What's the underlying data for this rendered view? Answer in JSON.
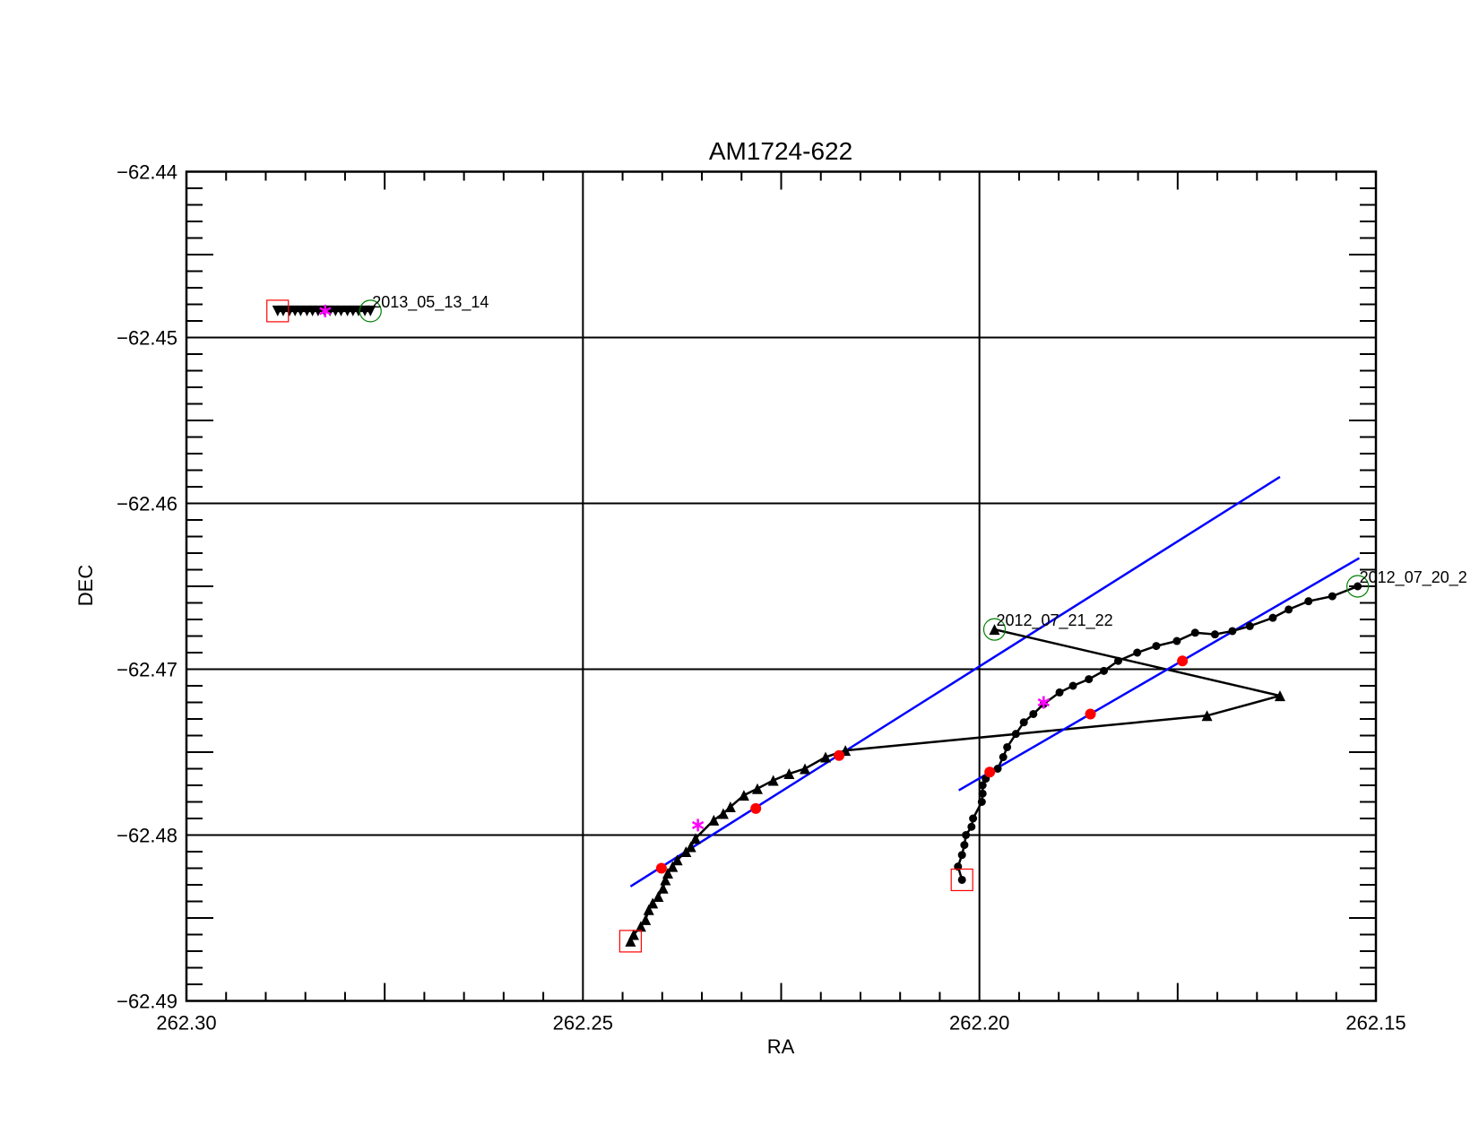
{
  "chart_data": {
    "type": "scatter",
    "title": "AM1724-622",
    "x_label": "RA",
    "y_label": "DEC",
    "xlim": [
      262.3,
      262.15
    ],
    "ylim": [
      -62.49,
      -62.44
    ],
    "xticks": [
      {
        "value": 262.3,
        "label": "262.30"
      },
      262.25,
      {
        "value": 262.2,
        "label": "262.20"
      },
      262.15
    ],
    "yticks": [
      {
        "value": -62.49,
        "label": "−62.49"
      },
      {
        "value": -62.48,
        "label": "−62.48"
      },
      {
        "value": -62.47,
        "label": "−62.47"
      },
      {
        "value": -62.46,
        "label": "−62.46"
      },
      {
        "value": -62.45,
        "label": "−62.45"
      },
      {
        "value": -62.44,
        "label": "−62.44"
      }
    ],
    "minor_divisions": 10,
    "grid": true,
    "start_color": "#ff0000",
    "end_color": "#008000",
    "highlight_color": "#ff00ff",
    "points_color": "#ff0000",
    "fit_color": "#0000ff",
    "series": [
      {
        "name": "2013_05_13_14",
        "marker": "triangle-down",
        "color": "#000000",
        "x": [
          262.2885,
          262.2878,
          262.287,
          262.2863,
          262.2856,
          262.2848,
          262.2841,
          262.2834,
          262.2826,
          262.2819,
          262.2812,
          262.2805,
          262.2797,
          262.279,
          262.2783,
          262.2775,
          262.2768
        ],
        "y": [
          -62.4484,
          -62.4484,
          -62.4484,
          -62.4484,
          -62.4484,
          -62.4484,
          -62.4484,
          -62.4484,
          -62.4484,
          -62.4484,
          -62.4484,
          -62.4484,
          -62.4484,
          -62.4484,
          -62.4484,
          -62.4484,
          -62.4484
        ],
        "highlight": {
          "x": 262.2825,
          "y": -62.4484
        }
      },
      {
        "name": "2012_07_21_22",
        "marker": "triangle",
        "color": "#000000",
        "x": [
          262.244,
          262.2436,
          262.2427,
          262.2421,
          262.2417,
          262.2412,
          262.2405,
          262.2399,
          262.2396,
          262.2393,
          262.2387,
          262.2381,
          262.237,
          262.2364,
          262.2358,
          262.2335,
          262.2323,
          262.2314,
          262.2297,
          262.228,
          262.226,
          262.224,
          262.222,
          262.2194,
          262.2169,
          262.1713,
          262.1621,
          262.1981
        ],
        "y": [
          -62.4864,
          -62.486,
          -62.4855,
          -62.4851,
          -62.4845,
          -62.4841,
          -62.4837,
          -62.4832,
          -62.4827,
          -62.4823,
          -62.4819,
          -62.4815,
          -62.481,
          -62.4807,
          -62.4802,
          -62.4791,
          -62.4787,
          -62.4783,
          -62.4776,
          -62.4772,
          -62.4767,
          -62.4763,
          -62.476,
          -62.4753,
          -62.4749,
          -62.4728,
          -62.4716,
          -62.4676
        ],
        "highlight": {
          "x": 262.2355,
          "y": -62.4794
        },
        "points": {
          "x": [
            262.2401,
            262.2282,
            262.2177
          ],
          "y": [
            -62.482,
            -62.4784,
            -62.4752
          ]
        },
        "fit": {
          "x": [
            262.244,
            262.1621
          ],
          "y": [
            -62.4831,
            -62.4584
          ]
        }
      },
      {
        "name": "2012_07_20_2",
        "marker": "circle",
        "color": "#000000",
        "x": [
          262.2022,
          262.2027,
          262.2022,
          262.2019,
          262.2017,
          262.201,
          262.2008,
          262.1997,
          262.1996,
          262.1996,
          262.1992,
          262.1977,
          262.197,
          262.1965,
          262.1954,
          262.1944,
          262.1932,
          262.1919,
          262.1899,
          262.1882,
          262.1862,
          262.1843,
          262.1825,
          262.1801,
          262.1777,
          262.1751,
          262.1728,
          262.1703,
          262.1681,
          262.1659,
          262.163,
          262.161,
          262.1585,
          262.1555,
          262.1523
        ],
        "y": [
          -62.4827,
          -62.4819,
          -62.4812,
          -62.4806,
          -62.48,
          -62.4795,
          -62.479,
          -62.478,
          -62.4775,
          -62.477,
          -62.4766,
          -62.476,
          -62.4753,
          -62.4747,
          -62.4739,
          -62.4732,
          -62.4727,
          -62.4721,
          -62.4714,
          -62.471,
          -62.4706,
          -62.4701,
          -62.4695,
          -62.469,
          -62.4686,
          -62.4683,
          -62.4678,
          -62.4679,
          -62.4677,
          -62.4674,
          -62.4669,
          -62.4664,
          -62.4659,
          -62.4656,
          -62.465
        ],
        "highlight": {
          "x": 262.1919,
          "y": -62.472
        },
        "points": {
          "x": [
            262.1987,
            262.186,
            262.1744
          ],
          "y": [
            -62.4762,
            -62.4727,
            -62.4695
          ]
        },
        "fit": {
          "x": [
            262.2026,
            262.1521
          ],
          "y": [
            -62.4773,
            -62.4633
          ]
        }
      }
    ]
  }
}
